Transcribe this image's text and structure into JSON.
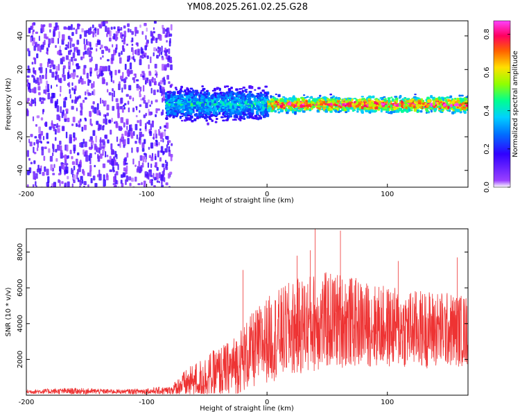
{
  "title": "YM08.2025.261.02.25.G28",
  "chart_data": [
    {
      "type": "heatmap",
      "xlabel": "Height of straight line (km)",
      "ylabel": "Frequency (Hz)",
      "xlim": [
        -200,
        167
      ],
      "ylim": [
        -50,
        49
      ],
      "x_ticks": [
        "-200",
        "-100",
        "0",
        "100"
      ],
      "x_tick_values": [
        -200,
        -100,
        0,
        100
      ],
      "y_ticks": [
        "-40",
        "-20",
        "0",
        "20",
        "40"
      ],
      "y_tick_values": [
        -40,
        -20,
        0,
        20,
        40
      ],
      "colorbar": {
        "label": "Normalized spectral amplitude",
        "range": [
          0,
          0.87
        ],
        "ticks": [
          "0.0",
          "0.2",
          "0.4",
          "0.6",
          "0.8"
        ],
        "tick_values": [
          0.0,
          0.2,
          0.4,
          0.6,
          0.8
        ],
        "colors": [
          "#ffffff",
          "#7a00ff",
          "#0000ff",
          "#00c8ff",
          "#00ff80",
          "#c0ff00",
          "#ffd000",
          "#ff4000",
          "#ff0080",
          "#ff40ff"
        ]
      },
      "regions": [
        {
          "name": "noise",
          "x_range": [
            -200,
            -80
          ],
          "freq_range": [
            -50,
            49
          ],
          "amplitude": 0.1
        },
        {
          "name": "signal-spread",
          "x_range": [
            -85,
            0
          ],
          "freq_center": 0,
          "freq_halfwidth": 8,
          "amplitude": 0.3
        },
        {
          "name": "signal-line",
          "x_range": [
            0,
            167
          ],
          "freq_center": 0,
          "freq_halfwidth": 4,
          "amplitude": 0.6
        }
      ]
    },
    {
      "type": "line",
      "xlabel": "Height of straight line (km)",
      "ylabel": "SNR (10 * v/v)",
      "xlim": [
        -200,
        167
      ],
      "ylim": [
        0,
        9300
      ],
      "x_ticks": [
        "-200",
        "-100",
        "0",
        "100"
      ],
      "x_tick_values": [
        -200,
        -100,
        0,
        100
      ],
      "y_ticks": [
        "2000",
        "4000",
        "6000",
        "8000"
      ],
      "y_tick_values": [
        2000,
        4000,
        6000,
        8000
      ],
      "series": [
        {
          "name": "SNR",
          "color": "#ee3333",
          "envelope": [
            {
              "x": -200,
              "mean": 200,
              "spread": 120
            },
            {
              "x": -160,
              "mean": 230,
              "spread": 180
            },
            {
              "x": -120,
              "mean": 200,
              "spread": 120
            },
            {
              "x": -80,
              "mean": 250,
              "spread": 250
            },
            {
              "x": -70,
              "mean": 600,
              "spread": 700
            },
            {
              "x": -50,
              "mean": 1000,
              "spread": 1300
            },
            {
              "x": -30,
              "mean": 1500,
              "spread": 1600
            },
            {
              "x": -10,
              "mean": 2600,
              "spread": 2200
            },
            {
              "x": 0,
              "mean": 3100,
              "spread": 2400
            },
            {
              "x": 20,
              "mean": 3700,
              "spread": 2700
            },
            {
              "x": 40,
              "mean": 4100,
              "spread": 2800
            },
            {
              "x": 60,
              "mean": 4200,
              "spread": 2700
            },
            {
              "x": 80,
              "mean": 4000,
              "spread": 2400
            },
            {
              "x": 100,
              "mean": 3800,
              "spread": 2300
            },
            {
              "x": 120,
              "mean": 3700,
              "spread": 2200
            },
            {
              "x": 140,
              "mean": 3700,
              "spread": 2200
            },
            {
              "x": 167,
              "mean": 3600,
              "spread": 2000
            }
          ],
          "peaks": [
            {
              "x": 40,
              "y": 9300
            },
            {
              "x": 61,
              "y": 9200
            },
            {
              "x": 36,
              "y": 8100
            },
            {
              "x": 25,
              "y": 7800
            },
            {
              "x": 158,
              "y": 7700
            },
            {
              "x": 109,
              "y": 7500
            },
            {
              "x": -20,
              "y": 7000
            }
          ]
        }
      ]
    }
  ]
}
